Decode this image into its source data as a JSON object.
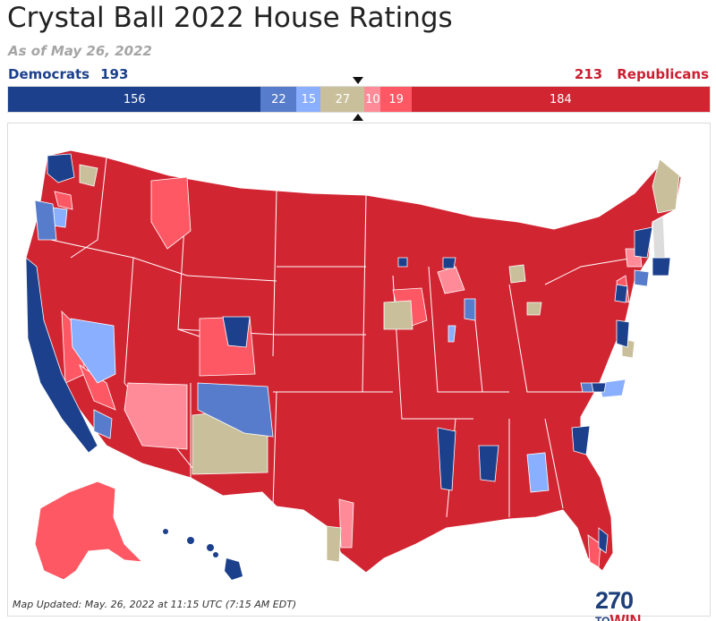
{
  "title": "Crystal Ball 2022 House Ratings",
  "subtitle": "As of May 26, 2022",
  "democrats": {
    "label": "Democrats",
    "total": "193"
  },
  "republicans": {
    "label": "Republicans",
    "total": "213"
  },
  "ratings_bar": [
    {
      "key": "safe-dem",
      "value": 156,
      "label": "156",
      "color": "#1c408c"
    },
    {
      "key": "likely-dem",
      "value": 22,
      "label": "22",
      "color": "#577ccc"
    },
    {
      "key": "lean-dem",
      "value": 15,
      "label": "15",
      "color": "#8aafff"
    },
    {
      "key": "toss-up",
      "value": 27,
      "label": "27",
      "color": "#c9c09b"
    },
    {
      "key": "lean-rep",
      "value": 10,
      "label": "10",
      "color": "#ff8b98"
    },
    {
      "key": "likely-rep",
      "value": 19,
      "label": "19",
      "color": "#ff5865"
    },
    {
      "key": "safe-rep",
      "value": 184,
      "label": "184",
      "color": "#d22532"
    }
  ],
  "logo": {
    "number": "270",
    "to": "TO",
    "win": "WIN"
  },
  "map_updated": "Map Updated: May. 26, 2022 at 11:15 UTC (7:15 AM EDT)"
}
